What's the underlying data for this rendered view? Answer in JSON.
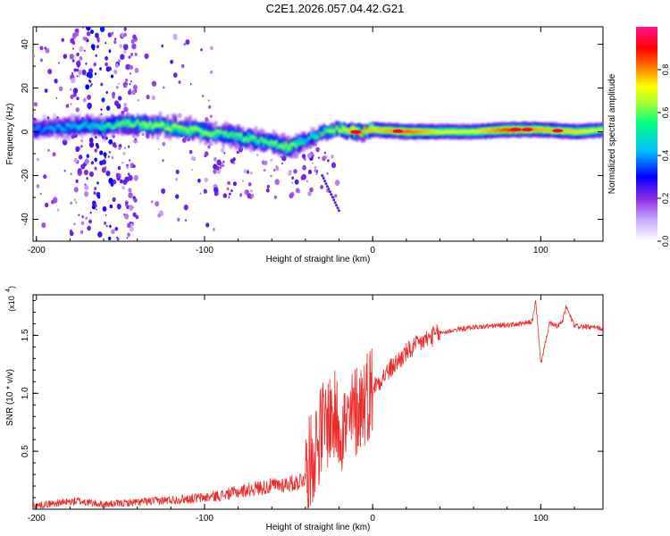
{
  "title": "C2E1.2026.057.04.42.G21",
  "chart_data": [
    {
      "type": "heatmap",
      "xlabel": "Height of straight line (km)",
      "ylabel": "Frequency (Hz)",
      "xlim": [
        -202,
        137
      ],
      "ylim": [
        -50,
        48
      ],
      "xticks": [
        -200,
        -100,
        0,
        100
      ],
      "yticks": [
        -40,
        -20,
        0,
        20,
        40
      ],
      "colorbar": {
        "label": "Normalized spectral amplitude",
        "range": [
          0,
          1
        ],
        "ticks": [
          0.0,
          0.2,
          0.4,
          0.6,
          0.8
        ],
        "colors": [
          "#ffffff",
          "#8a2be2",
          "#0000ff",
          "#00bfff",
          "#00ff7f",
          "#adff2f",
          "#ffff00",
          "#ff8c00",
          "#ff0000",
          "#ff1493"
        ]
      },
      "ridge": {
        "x": [
          -202,
          -185,
          -170,
          -160,
          -150,
          -130,
          -110,
          -90,
          -75,
          -60,
          -50,
          -40,
          -30,
          -20,
          -10,
          0,
          20,
          40,
          60,
          80,
          100,
          120,
          137
        ],
        "y": [
          1,
          2,
          3,
          2,
          4,
          3,
          1,
          -1,
          -3,
          -5,
          -7,
          -4,
          0,
          1,
          0,
          1,
          0,
          0,
          0,
          1,
          1,
          0,
          1
        ],
        "amplitude": [
          0.3,
          0.35,
          0.4,
          0.45,
          0.5,
          0.55,
          0.55,
          0.5,
          0.5,
          0.5,
          0.55,
          0.4,
          0.5,
          0.6,
          0.85,
          0.7,
          0.85,
          0.65,
          0.65,
          0.9,
          0.75,
          0.7,
          0.6
        ]
      },
      "tail": {
        "x": [
          -30,
          -20
        ],
        "y": [
          -20,
          -36
        ]
      }
    },
    {
      "type": "line",
      "xlabel": "Height of straight line (km)",
      "ylabel": "SNR (10 * v/v)",
      "scale_label": "(x10",
      "scale_exp": "4",
      "xlim": [
        -202,
        137
      ],
      "ylim": [
        0,
        1.85
      ],
      "xticks": [
        -200,
        -100,
        0,
        100
      ],
      "yticks": [
        0.5,
        1.0,
        1.5
      ],
      "series": [
        {
          "name": "SNR",
          "color": "#ee2a2a",
          "x": [
            -202,
            -190,
            -175,
            -160,
            -140,
            -120,
            -100,
            -90,
            -80,
            -70,
            -60,
            -50,
            -45,
            -40,
            -35,
            -30,
            -25,
            -20,
            -15,
            -10,
            -5,
            0,
            10,
            20,
            30,
            40,
            50,
            60,
            70,
            80,
            90,
            95,
            97,
            100,
            105,
            110,
            113,
            115,
            120,
            130,
            137
          ],
          "y": [
            0.03,
            0.05,
            0.07,
            0.04,
            0.06,
            0.08,
            0.1,
            0.12,
            0.15,
            0.18,
            0.2,
            0.22,
            0.23,
            0.28,
            0.5,
            0.7,
            0.8,
            0.75,
            0.7,
            0.85,
            0.95,
            1.05,
            1.2,
            1.35,
            1.45,
            1.52,
            1.55,
            1.57,
            1.58,
            1.59,
            1.6,
            1.62,
            1.8,
            1.25,
            1.6,
            1.58,
            1.62,
            1.75,
            1.58,
            1.57,
            1.56
          ]
        }
      ]
    }
  ]
}
